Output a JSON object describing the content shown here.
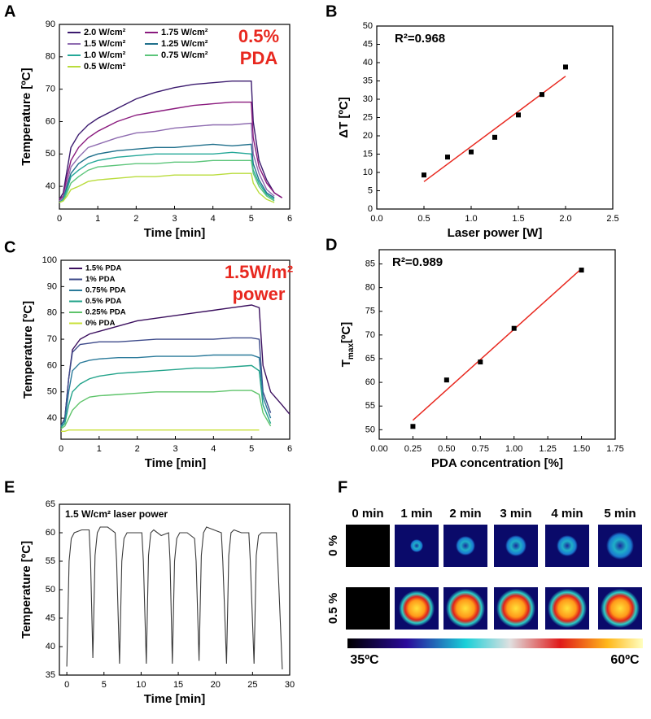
{
  "chart_data": [
    {
      "panel": "A",
      "type": "line",
      "xlabel": "Time [min]",
      "ylabel": "Temperature [ºC]",
      "annotation": [
        "0.5%",
        "PDA"
      ],
      "annotation_color": "#e8281f",
      "legend_columns": 2,
      "xlim": [
        0,
        6
      ],
      "xticks": [
        0,
        1,
        2,
        3,
        4,
        5,
        6
      ],
      "ylim": [
        33,
        90
      ],
      "yticks": [
        40,
        50,
        60,
        70,
        80,
        90
      ],
      "x": [
        0,
        0.1,
        0.2,
        0.3,
        0.5,
        0.75,
        1,
        1.5,
        2,
        2.5,
        3,
        3.5,
        4,
        4.5,
        5,
        5.05,
        5.2,
        5.4,
        5.6,
        5.8
      ],
      "series": [
        {
          "name": "2.0 W/cm²",
          "color": "#3b1a6e",
          "values": [
            36,
            38,
            45,
            52,
            56,
            59,
            61,
            64,
            67,
            69,
            70.5,
            71.5,
            72,
            72.5,
            72.5,
            60,
            48,
            42,
            38,
            36.5
          ]
        },
        {
          "name": "1.75 W/cm²",
          "color": "#8a1a7e",
          "values": [
            36,
            37,
            43,
            48,
            52,
            55,
            57,
            60,
            62,
            63,
            64,
            65,
            65.5,
            66,
            66,
            55,
            46,
            41,
            38,
            36.5
          ]
        },
        {
          "name": "1.5 W/cm²",
          "color": "#8e6bb0",
          "values": [
            35.5,
            36.5,
            41,
            46,
            49,
            52,
            53,
            55,
            56.5,
            57,
            58,
            58.5,
            59,
            59,
            59.5,
            50,
            44,
            39,
            37,
            null
          ]
        },
        {
          "name": "1.25 W/cm²",
          "color": "#1f6f8b",
          "values": [
            35,
            36,
            40,
            44,
            47,
            49,
            50,
            51,
            51.5,
            52,
            52,
            52.5,
            53,
            52.5,
            53,
            47,
            42,
            38,
            36.5,
            null
          ]
        },
        {
          "name": "1.0 W/cm²",
          "color": "#25a898",
          "values": [
            35,
            36,
            39,
            43,
            45,
            47,
            48,
            49,
            49.5,
            50,
            50,
            50,
            50,
            50.5,
            50,
            45,
            41,
            37.5,
            36,
            null
          ]
        },
        {
          "name": "0.75 W/cm²",
          "color": "#5cc57a",
          "values": [
            35,
            35.5,
            38,
            41,
            43,
            45,
            46,
            46.5,
            47,
            47,
            47.5,
            47.5,
            48,
            48,
            48,
            44,
            40,
            37,
            35.5,
            null
          ]
        },
        {
          "name": "0.5 W/cm²",
          "color": "#b9dc3c",
          "values": [
            35,
            35.5,
            37,
            39,
            40,
            41.5,
            42,
            42.5,
            43,
            43,
            43.5,
            43.5,
            43.5,
            44,
            44,
            41,
            38,
            36,
            35,
            null
          ]
        }
      ]
    },
    {
      "panel": "B",
      "type": "scatter",
      "xlabel": "Laser power [W]",
      "ylabel": "ΔT [ºC]",
      "annotation": [
        "R²=0.968"
      ],
      "annotation_color": "#000000",
      "color": "#000000",
      "xlim": [
        0,
        2.5
      ],
      "xticks": [
        {
          "value": 0,
          "label": "0.0"
        },
        {
          "value": 0.5,
          "label": "0.5"
        },
        {
          "value": 1,
          "label": "1.0"
        },
        {
          "value": 1.5,
          "label": "1.5"
        },
        {
          "value": 2,
          "label": "2.0"
        },
        {
          "value": 2.5,
          "label": "2.5"
        }
      ],
      "ylim": [
        0,
        50
      ],
      "yticks": [
        0,
        5,
        10,
        15,
        20,
        25,
        30,
        35,
        40,
        45,
        50
      ],
      "x": [
        0.5,
        0.75,
        1,
        1.25,
        1.5,
        1.75,
        2
      ],
      "values": [
        9.3,
        14.2,
        15.6,
        19.6,
        25.7,
        31.3,
        38.8
      ],
      "fit": {
        "x": [
          0.5,
          2
        ],
        "y": [
          7.5,
          36.3
        ],
        "color": "#e8281f"
      }
    },
    {
      "panel": "C",
      "type": "line",
      "xlabel": "Time [min]",
      "ylabel": "Temperature [ºC]",
      "annotation": [
        "1.5W/m²",
        "power"
      ],
      "annotation_color": "#e8281f",
      "legend_columns": 1,
      "xlim": [
        0,
        6
      ],
      "xticks": [
        0,
        1,
        2,
        3,
        4,
        5,
        6
      ],
      "ylim": [
        32,
        100
      ],
      "yticks": [
        40,
        50,
        60,
        70,
        80,
        90,
        100
      ],
      "x": [
        0,
        0.1,
        0.2,
        0.3,
        0.5,
        0.75,
        1,
        1.5,
        2,
        2.5,
        3,
        3.5,
        4,
        4.5,
        5,
        5.2,
        5.3,
        5.5,
        5.8,
        6
      ],
      "series": [
        {
          "name": "1.5% PDA",
          "color": "#3b0f5e",
          "values": [
            37,
            40,
            55,
            66,
            70,
            72,
            73,
            75,
            77,
            78,
            79,
            80,
            81,
            82,
            83,
            82,
            60,
            50,
            45,
            41.5
          ]
        },
        {
          "name": "1% PDA",
          "color": "#3d4a8a",
          "values": [
            37,
            40,
            55,
            65,
            68,
            68.5,
            69,
            69,
            69.5,
            70,
            70,
            70,
            70,
            70.5,
            70.5,
            70,
            50,
            42,
            null,
            null
          ]
        },
        {
          "name": "0.75% PDA",
          "color": "#2a7a9a",
          "values": [
            37,
            39,
            50,
            58,
            61,
            62,
            62.5,
            63,
            63,
            63.5,
            63.5,
            63.5,
            64,
            64,
            64,
            63,
            48,
            40,
            null,
            null
          ]
        },
        {
          "name": "0.5% PDA",
          "color": "#22a38a",
          "values": [
            36.5,
            38,
            45,
            50,
            53,
            55,
            56,
            57,
            57.5,
            58,
            58.5,
            59,
            59,
            59.5,
            60,
            58,
            45,
            38,
            null,
            null
          ]
        },
        {
          "name": "0.25% PDA",
          "color": "#5ec46a",
          "values": [
            36,
            37,
            40,
            43,
            46,
            48,
            48.5,
            49,
            49.5,
            50,
            50,
            50,
            50,
            50.5,
            50.5,
            49,
            42,
            37,
            null,
            null
          ]
        },
        {
          "name": "0% PDA",
          "color": "#c9e03a",
          "values": [
            35,
            35,
            35.5,
            35.5,
            35.5,
            35.5,
            35.5,
            35.5,
            35.5,
            35.5,
            35.5,
            35.5,
            35.5,
            35.5,
            35.5,
            35.5,
            null,
            null,
            null,
            null
          ]
        }
      ]
    },
    {
      "panel": "D",
      "type": "scatter",
      "xlabel": "PDA concentration [%]",
      "ylabel": [
        {
          "text": "T"
        },
        {
          "text": "max",
          "sub": true
        },
        {
          "text": "[ºC]"
        }
      ],
      "annotation": [
        "R²=0.989"
      ],
      "annotation_color": "#000000",
      "color": "#000000",
      "xlim": [
        0,
        1.75
      ],
      "xticks": [
        {
          "value": 0,
          "label": "0.00"
        },
        {
          "value": 0.25,
          "label": "0.25"
        },
        {
          "value": 0.5,
          "label": "0.50"
        },
        {
          "value": 0.75,
          "label": "0.75"
        },
        {
          "value": 1,
          "label": "1.00"
        },
        {
          "value": 1.25,
          "label": "1.25"
        },
        {
          "value": 1.5,
          "label": "1.50"
        },
        {
          "value": 1.75,
          "label": "1.75"
        }
      ],
      "ylim": [
        48,
        88
      ],
      "yticks": [
        50,
        55,
        60,
        65,
        70,
        75,
        80,
        85
      ],
      "x": [
        0.25,
        0.5,
        0.75,
        1,
        1.5
      ],
      "values": [
        50.7,
        60.5,
        64.3,
        71.4,
        83.7
      ],
      "fit": {
        "x": [
          0.25,
          1.5
        ],
        "y": [
          52,
          84
        ],
        "color": "#e8281f"
      }
    },
    {
      "panel": "E",
      "type": "line",
      "xlabel": "Time [min]",
      "ylabel": "Temperature [ºC]",
      "annotation": [
        "1.5 W/cm² laser power"
      ],
      "annotation_color": "#000000",
      "color": "#3a3a3a",
      "xlim": [
        -1,
        30
      ],
      "xticks": [
        0,
        5,
        10,
        15,
        20,
        25,
        30
      ],
      "ylim": [
        35,
        65
      ],
      "yticks": [
        35,
        40,
        45,
        50,
        55,
        60,
        65
      ],
      "x": [
        0,
        0.3,
        0.6,
        1,
        2,
        3,
        3.2,
        3.5,
        3.8,
        4.1,
        4.5,
        5.5,
        6.5,
        6.7,
        7.1,
        7.4,
        7.7,
        8.1,
        9.1,
        10.1,
        10.3,
        10.7,
        11,
        11.3,
        11.7,
        12.7,
        13.7,
        13.9,
        14.2,
        14.5,
        14.8,
        15.2,
        16.2,
        17.2,
        17.4,
        17.8,
        18.1,
        18.4,
        18.8,
        19.8,
        20.8,
        21,
        21.5,
        21.8,
        22.1,
        22.5,
        23.5,
        24.5,
        24.7,
        25.2,
        25.5,
        25.8,
        26.2,
        27.2,
        28.2,
        28.4,
        29
      ],
      "values": [
        36.5,
        55,
        59,
        60,
        60.5,
        60.5,
        55,
        38,
        56,
        60,
        61,
        61,
        60,
        55,
        37,
        55,
        59,
        60,
        60,
        60,
        55,
        37,
        56,
        60,
        60.5,
        59.5,
        60,
        55,
        37,
        55,
        59,
        60,
        60,
        59,
        55,
        37.5,
        56,
        60,
        61,
        60.5,
        60,
        55,
        37,
        56,
        60,
        60.5,
        60,
        60,
        55,
        37,
        56,
        59.5,
        60,
        60,
        60,
        55,
        36
      ]
    }
  ],
  "thermal_images": {
    "panel": "F",
    "columns": [
      "0 min",
      "1 min",
      "2 min",
      "3 min",
      "4 min",
      "5 min"
    ],
    "rows": [
      "0 %",
      "0.5 %"
    ],
    "colorbar": {
      "min_label": "35ºC",
      "max_label": "60ºC"
    }
  }
}
